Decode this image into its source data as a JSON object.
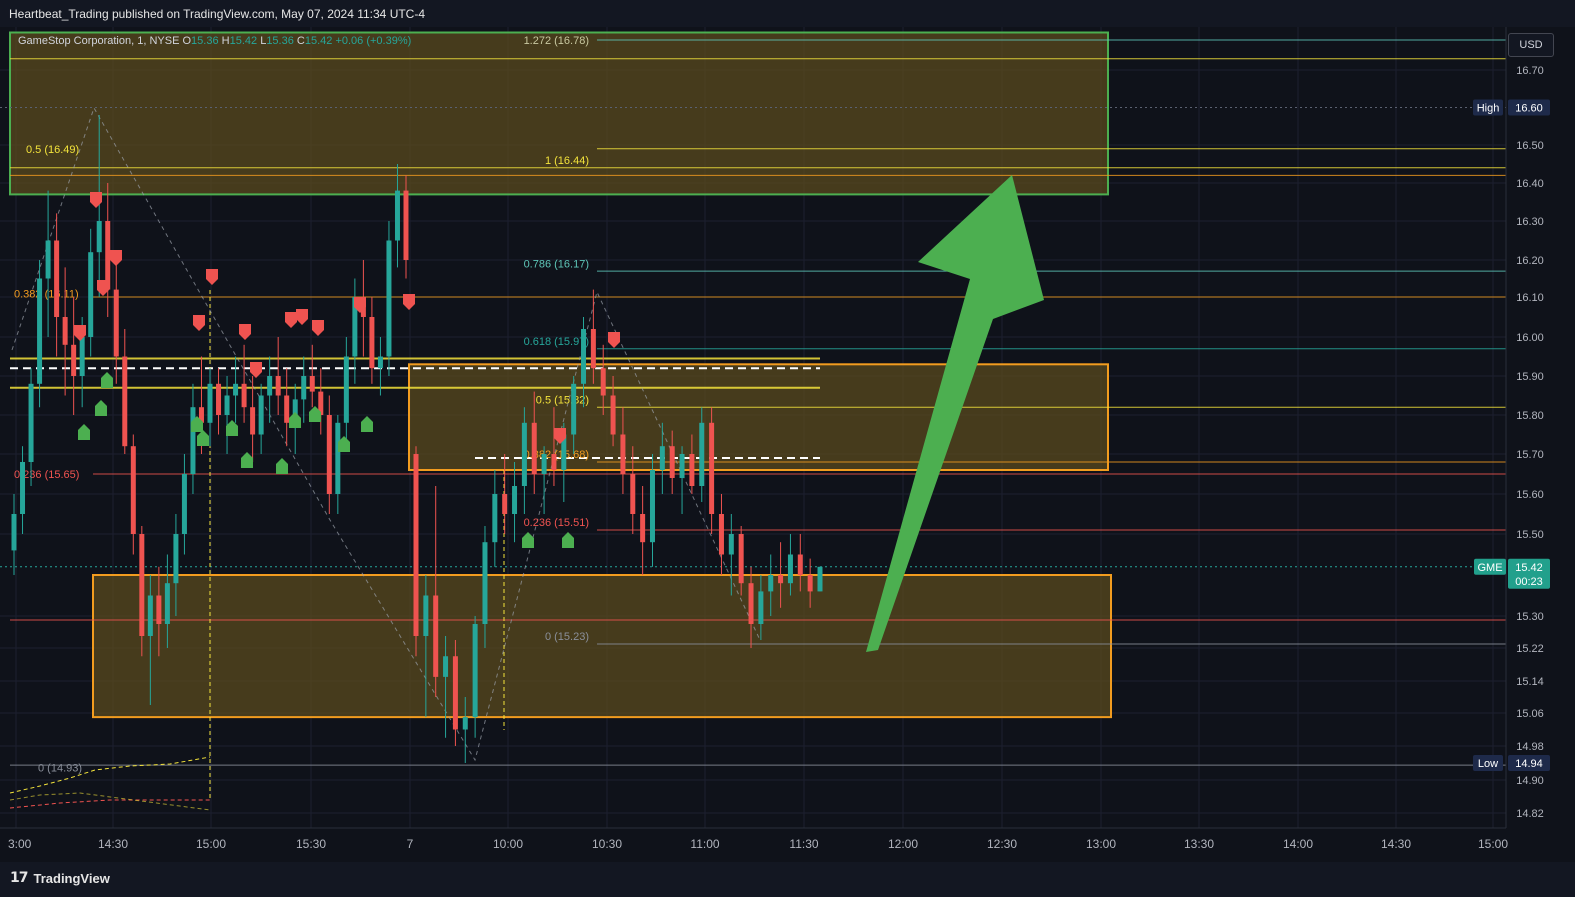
{
  "header": {
    "publish_line": "Heartbeat_Trading published on TradingView.com, May 07, 2024 11:34 UTC-4"
  },
  "legend": {
    "symbol": "GameStop Corporation, 1, NYSE",
    "o_label": "O",
    "o_value": "15.36",
    "h_label": "H",
    "h_value": "15.42",
    "l_label": "L",
    "l_value": "15.36",
    "c_label": "C",
    "c_value": "15.42",
    "change": "+0.06 (+0.39%)"
  },
  "currency_button": "USD",
  "footer": {
    "brand": "TradingView",
    "logo_icon": "tradingview-logo-icon"
  },
  "colors": {
    "background": "#0f121a",
    "up": "#26a69a",
    "down": "#ef5350",
    "zone_fill": "#5a4a1d",
    "zone_border": "#f29c1f",
    "green_zone_border": "#4caf50",
    "arrow": "#4caf50",
    "fib_yellow": "#f3e33b",
    "fib_teal": "#5ec6b8",
    "fib_red": "#f05350",
    "fib_gray": "#8a8f9a"
  },
  "chart_data": {
    "type": "candlestick",
    "symbol": "GME",
    "timeframe": "1",
    "x_tick_labels": [
      "3:00",
      "14:30",
      "15:00",
      "15:30",
      "7",
      "10:00",
      "10:30",
      "11:00",
      "11:30",
      "12:00",
      "12:30",
      "13:00",
      "13:30",
      "14:00",
      "14:30",
      "15:00"
    ],
    "y_tick_labels": [
      "16.70",
      "16.50",
      "16.40",
      "16.30",
      "16.20",
      "16.10",
      "16.00",
      "15.90",
      "15.80",
      "15.70",
      "15.60",
      "15.50",
      "15.30",
      "15.22",
      "15.14",
      "15.06",
      "14.98",
      "14.90",
      "14.82"
    ],
    "price_badges": [
      {
        "label": "High",
        "value": "16.60",
        "color": "#1e2a4a"
      },
      {
        "label": "GME",
        "value": "15.42",
        "sub": "00:23",
        "color": "#22a08c"
      },
      {
        "label": "Low",
        "value": "14.94",
        "color": "#1e2a4a"
      }
    ],
    "fib_left": [
      {
        "text": "0.5 (16.49)",
        "color": "#f3e33b"
      },
      {
        "text": "0.382 (16.11)",
        "color": "#f29c1f"
      },
      {
        "text": "0.236 (15.65)",
        "color": "#f05350"
      },
      {
        "text": "0 (14.93)",
        "color": "#8a8f9a"
      }
    ],
    "fib_right": [
      {
        "text": "1.272 (16.78)",
        "color": "#c8c8a0"
      },
      {
        "text": "1 (16.44)",
        "color": "#f3e33b"
      },
      {
        "text": "0.786 (16.17)",
        "color": "#5ec6b8"
      },
      {
        "text": "0.618 (15.97)",
        "color": "#26a69a"
      },
      {
        "text": "0.5 (15.82)",
        "color": "#f3e33b"
      },
      {
        "text": "0.382 (15.68)",
        "color": "#f29c1f"
      },
      {
        "text": "0.236 (15.51)",
        "color": "#f05350"
      },
      {
        "text": "0 (15.23)",
        "color": "#8a8f9a"
      }
    ],
    "zones": [
      {
        "name": "resistance-zone-top",
        "top": 16.8,
        "bottom": 16.37,
        "border": "#4caf50"
      },
      {
        "name": "mid-zone",
        "top": 15.93,
        "bottom": 15.66,
        "border": "#f29c1f"
      },
      {
        "name": "support-zone",
        "top": 15.4,
        "bottom": 15.05,
        "border": "#f29c1f"
      }
    ],
    "arrow": {
      "from": [
        11.7,
        15.2
      ],
      "to": [
        12.75,
        16.42
      ],
      "direction": "up"
    },
    "candles": [
      [
        15.46,
        15.6,
        15.4,
        15.55
      ],
      [
        15.55,
        15.72,
        15.5,
        15.68
      ],
      [
        15.68,
        15.92,
        15.62,
        15.88
      ],
      [
        15.88,
        16.2,
        15.82,
        16.15
      ],
      [
        16.15,
        16.38,
        16.0,
        16.25
      ],
      [
        16.25,
        16.32,
        15.95,
        16.05
      ],
      [
        16.05,
        16.18,
        15.85,
        15.98
      ],
      [
        15.98,
        16.1,
        15.8,
        15.9
      ],
      [
        15.9,
        16.05,
        15.82,
        16.0
      ],
      [
        16.0,
        16.28,
        15.95,
        16.22
      ],
      [
        16.22,
        16.58,
        16.1,
        16.3
      ],
      [
        16.3,
        16.4,
        16.05,
        16.12
      ],
      [
        16.12,
        16.2,
        15.88,
        15.95
      ],
      [
        15.95,
        16.02,
        15.7,
        15.72
      ],
      [
        15.72,
        15.75,
        15.45,
        15.5
      ],
      [
        15.5,
        15.52,
        15.2,
        15.25
      ],
      [
        15.25,
        15.4,
        15.08,
        15.35
      ],
      [
        15.35,
        15.42,
        15.2,
        15.28
      ],
      [
        15.28,
        15.45,
        15.22,
        15.38
      ],
      [
        15.38,
        15.55,
        15.3,
        15.5
      ],
      [
        15.5,
        15.7,
        15.45,
        15.65
      ],
      [
        15.65,
        15.88,
        15.6,
        15.82
      ],
      [
        15.82,
        15.95,
        15.7,
        15.78
      ],
      [
        15.78,
        15.92,
        15.72,
        15.88
      ],
      [
        15.88,
        15.92,
        15.75,
        15.8
      ],
      [
        15.8,
        15.9,
        15.7,
        15.85
      ],
      [
        15.85,
        15.95,
        15.78,
        15.88
      ],
      [
        15.88,
        15.98,
        15.78,
        15.82
      ],
      [
        15.82,
        15.9,
        15.68,
        15.75
      ],
      [
        15.75,
        15.88,
        15.7,
        15.85
      ],
      [
        15.85,
        15.95,
        15.78,
        15.9
      ],
      [
        15.9,
        16.0,
        15.8,
        15.85
      ],
      [
        15.85,
        15.92,
        15.72,
        15.78
      ],
      [
        15.78,
        15.88,
        15.7,
        15.84
      ],
      [
        15.84,
        15.95,
        15.78,
        15.9
      ],
      [
        15.9,
        15.98,
        15.82,
        15.86
      ],
      [
        15.86,
        15.92,
        15.75,
        15.8
      ],
      [
        15.8,
        15.85,
        15.55,
        15.6
      ],
      [
        15.6,
        15.8,
        15.55,
        15.78
      ],
      [
        15.78,
        16.0,
        15.72,
        15.95
      ],
      [
        15.95,
        16.15,
        15.88,
        16.1
      ],
      [
        16.1,
        16.2,
        15.95,
        16.05
      ],
      [
        16.05,
        16.1,
        15.88,
        15.92
      ],
      [
        15.92,
        16.0,
        15.85,
        15.95
      ],
      [
        15.95,
        16.3,
        15.9,
        16.25
      ],
      [
        16.25,
        16.45,
        16.18,
        16.38
      ],
      [
        16.38,
        16.42,
        16.15,
        16.2
      ],
      [
        15.7,
        15.72,
        15.2,
        15.25
      ],
      [
        15.25,
        15.4,
        15.05,
        15.35
      ],
      [
        15.35,
        15.62,
        15.1,
        15.15
      ],
      [
        15.15,
        15.25,
        15.0,
        15.2
      ],
      [
        15.2,
        15.24,
        14.98,
        15.02
      ],
      [
        15.02,
        15.1,
        14.94,
        15.05
      ],
      [
        15.05,
        15.3,
        15.0,
        15.28
      ],
      [
        15.28,
        15.52,
        15.22,
        15.48
      ],
      [
        15.48,
        15.66,
        15.42,
        15.6
      ],
      [
        15.6,
        15.7,
        15.5,
        15.55
      ],
      [
        15.55,
        15.68,
        15.48,
        15.62
      ],
      [
        15.62,
        15.82,
        15.55,
        15.78
      ],
      [
        15.78,
        15.86,
        15.6,
        15.65
      ],
      [
        15.65,
        15.72,
        15.55,
        15.7
      ],
      [
        15.7,
        15.82,
        15.62,
        15.66
      ],
      [
        15.66,
        15.78,
        15.58,
        15.75
      ],
      [
        15.75,
        15.9,
        15.7,
        15.88
      ],
      [
        15.88,
        16.05,
        15.82,
        16.02
      ],
      [
        16.02,
        16.12,
        15.88,
        15.92
      ],
      [
        15.92,
        15.98,
        15.8,
        15.85
      ],
      [
        15.85,
        15.9,
        15.72,
        15.75
      ],
      [
        15.75,
        15.82,
        15.6,
        15.65
      ],
      [
        15.65,
        15.72,
        15.5,
        15.55
      ],
      [
        15.55,
        15.62,
        15.4,
        15.48
      ],
      [
        15.48,
        15.7,
        15.42,
        15.66
      ],
      [
        15.66,
        15.78,
        15.6,
        15.72
      ],
      [
        15.72,
        15.76,
        15.6,
        15.64
      ],
      [
        15.64,
        15.72,
        15.55,
        15.7
      ],
      [
        15.7,
        15.75,
        15.6,
        15.62
      ],
      [
        15.62,
        15.82,
        15.58,
        15.78
      ],
      [
        15.78,
        15.82,
        15.5,
        15.55
      ],
      [
        15.55,
        15.6,
        15.4,
        15.45
      ],
      [
        15.45,
        15.55,
        15.35,
        15.5
      ],
      [
        15.5,
        15.52,
        15.35,
        15.38
      ],
      [
        15.38,
        15.42,
        15.22,
        15.28
      ],
      [
        15.28,
        15.4,
        15.24,
        15.36
      ],
      [
        15.36,
        15.45,
        15.3,
        15.4
      ],
      [
        15.4,
        15.48,
        15.32,
        15.38
      ],
      [
        15.38,
        15.5,
        15.35,
        15.45
      ],
      [
        15.45,
        15.5,
        15.36,
        15.4
      ],
      [
        15.4,
        15.44,
        15.32,
        15.36
      ],
      [
        15.36,
        15.42,
        15.36,
        15.42
      ]
    ]
  }
}
